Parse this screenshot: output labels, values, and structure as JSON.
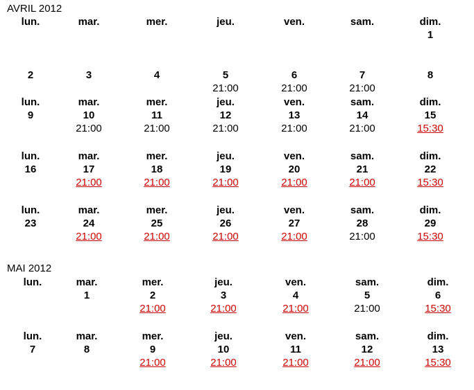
{
  "months": [
    {
      "title": "AVRIL 2012",
      "weeks": [
        [
          {
            "day": "lun.",
            "num": "",
            "time": "",
            "link": false
          },
          {
            "day": "mar.",
            "num": "",
            "time": "",
            "link": false
          },
          {
            "day": "mer.",
            "num": "",
            "time": "",
            "link": false
          },
          {
            "day": "jeu.",
            "num": "",
            "time": "",
            "link": false
          },
          {
            "day": "ven.",
            "num": "",
            "time": "",
            "link": false
          },
          {
            "day": "sam.",
            "num": "",
            "time": "",
            "link": false
          },
          {
            "day": "dim.",
            "num": "1",
            "time": "",
            "link": false
          }
        ],
        [
          {
            "day": "",
            "num": "2",
            "time": "",
            "link": false
          },
          {
            "day": "",
            "num": "3",
            "time": "",
            "link": false
          },
          {
            "day": "",
            "num": "4",
            "time": "",
            "link": false
          },
          {
            "day": "",
            "num": "5",
            "time": "21:00",
            "link": false
          },
          {
            "day": "",
            "num": "6",
            "time": "21:00",
            "link": false
          },
          {
            "day": "",
            "num": "7",
            "time": "21:00",
            "link": false
          },
          {
            "day": "",
            "num": "8",
            "time": "",
            "link": false
          }
        ],
        [
          {
            "day": "lun.",
            "num": "9",
            "time": "",
            "link": false
          },
          {
            "day": "mar.",
            "num": "10",
            "time": "21:00",
            "link": false
          },
          {
            "day": "mer.",
            "num": "11",
            "time": "21:00",
            "link": false
          },
          {
            "day": "jeu.",
            "num": "12",
            "time": "21:00",
            "link": false
          },
          {
            "day": "ven.",
            "num": "13",
            "time": "21:00",
            "link": false
          },
          {
            "day": "sam.",
            "num": "14",
            "time": "21:00",
            "link": false
          },
          {
            "day": "dim.",
            "num": "15",
            "time": "15:30",
            "link": true
          }
        ],
        [
          {
            "day": "lun.",
            "num": "16",
            "time": "",
            "link": false
          },
          {
            "day": "mar.",
            "num": "17",
            "time": "21:00",
            "link": true
          },
          {
            "day": "mer.",
            "num": "18",
            "time": "21:00",
            "link": true
          },
          {
            "day": "jeu.",
            "num": "19",
            "time": "21:00",
            "link": true
          },
          {
            "day": "ven.",
            "num": "20",
            "time": "21:00",
            "link": true
          },
          {
            "day": "sam.",
            "num": "21",
            "time": "21:00",
            "link": true
          },
          {
            "day": "dim.",
            "num": "22",
            "time": "15:30",
            "link": true
          }
        ],
        [
          {
            "day": "lun.",
            "num": "23",
            "time": "",
            "link": false
          },
          {
            "day": "mar.",
            "num": "24",
            "time": "21:00",
            "link": true
          },
          {
            "day": "mer.",
            "num": "25",
            "time": "21:00",
            "link": true
          },
          {
            "day": "jeu.",
            "num": "26",
            "time": "21:00",
            "link": true
          },
          {
            "day": "ven.",
            "num": "27",
            "time": "21:00",
            "link": true
          },
          {
            "day": "sam.",
            "num": "28",
            "time": "21:00",
            "link": false
          },
          {
            "day": "dim.",
            "num": "29",
            "time": "15:30",
            "link": true
          }
        ]
      ]
    },
    {
      "title": "MAI 2012",
      "weeks": [
        [
          {
            "day": "lun.",
            "num": "",
            "time": "",
            "link": false
          },
          {
            "day": "mar.",
            "num": "1",
            "time": "",
            "link": false
          },
          {
            "day": "mer.",
            "num": "2",
            "time": "21:00",
            "link": true
          },
          {
            "day": "jeu.",
            "num": "3",
            "time": "21:00",
            "link": true
          },
          {
            "day": "ven.",
            "num": "4",
            "time": "21:00",
            "link": true
          },
          {
            "day": "sam.",
            "num": "5",
            "time": "21:00",
            "link": false
          },
          {
            "day": "dim.",
            "num": "6",
            "time": "15:30",
            "link": true
          }
        ],
        [
          {
            "day": "lun.",
            "num": "7",
            "time": "",
            "link": false
          },
          {
            "day": "mar.",
            "num": "8",
            "time": "",
            "link": false
          },
          {
            "day": "mer.",
            "num": "9",
            "time": "21:00",
            "link": true
          },
          {
            "day": "jeu.",
            "num": "10",
            "time": "21:00",
            "link": true
          },
          {
            "day": "ven.",
            "num": "11",
            "time": "21:00",
            "link": true
          },
          {
            "day": "sam.",
            "num": "12",
            "time": "21:00",
            "link": true
          },
          {
            "day": "dim.",
            "num": "13",
            "time": "15:30",
            "link": true
          }
        ]
      ]
    }
  ]
}
